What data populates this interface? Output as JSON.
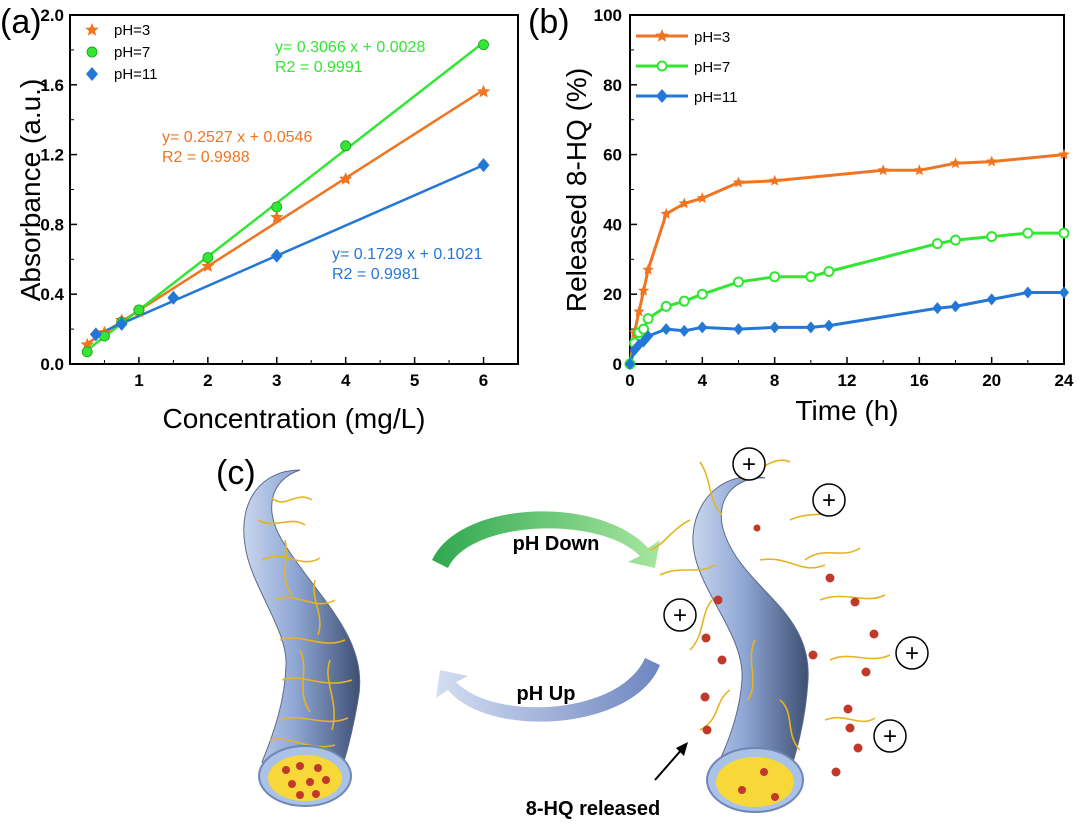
{
  "colors": {
    "orange": "#f07522",
    "green": "#33e633",
    "blue": "#2377d6"
  },
  "chart_data": [
    {
      "type": "scatter",
      "panel_label": "(a)",
      "xlabel": "Concentration (mg/L)",
      "ylabel": "Absorbance (a.u.)",
      "xlim": [
        0,
        6.5
      ],
      "ylim": [
        0,
        2.0
      ],
      "xticks": [
        "1",
        "2",
        "3",
        "4",
        "5",
        "6"
      ],
      "yticks": [
        "0.0",
        "0.4",
        "0.8",
        "1.2",
        "1.6",
        "2.0"
      ],
      "legend_position": "top-left",
      "series": [
        {
          "name": "pH=3",
          "marker": "star",
          "color": "#f07522",
          "x": [
            0.25,
            0.5,
            0.75,
            1,
            2,
            3,
            4,
            6
          ],
          "y": [
            0.11,
            0.18,
            0.25,
            0.3,
            0.56,
            0.84,
            1.06,
            1.56
          ],
          "fit": {
            "slope": 0.2527,
            "intercept": 0.0546
          },
          "equation": "y= 0.2527 x + 0.0546",
          "r2": "R2 = 0.9988"
        },
        {
          "name": "pH=7",
          "marker": "circle",
          "color": "#33e633",
          "x": [
            0.25,
            0.5,
            0.75,
            1,
            2,
            3,
            4,
            6
          ],
          "y": [
            0.07,
            0.16,
            0.24,
            0.31,
            0.61,
            0.9,
            1.25,
            1.83
          ],
          "fit": {
            "slope": 0.3066,
            "intercept": 0.0028
          },
          "equation": "y= 0.3066 x + 0.0028",
          "r2": "R2 = 0.9991"
        },
        {
          "name": "pH=11",
          "marker": "diamond",
          "color": "#2377d6",
          "x": [
            0.375,
            0.75,
            1.5,
            3,
            6
          ],
          "y": [
            0.17,
            0.23,
            0.38,
            0.62,
            1.14
          ],
          "fit": {
            "slope": 0.1729,
            "intercept": 0.1021
          },
          "equation": "y= 0.1729 x + 0.1021",
          "r2": "R2 = 0.9981"
        }
      ]
    },
    {
      "type": "line",
      "panel_label": "(b)",
      "xlabel": "Time (h)",
      "ylabel": "Released 8-HQ (%)",
      "xlim": [
        0,
        24
      ],
      "ylim": [
        0,
        100
      ],
      "xticks": [
        "0",
        "4",
        "8",
        "12",
        "16",
        "20",
        "24"
      ],
      "yticks": [
        "0",
        "20",
        "40",
        "60",
        "80",
        "100"
      ],
      "legend_position": "top-left",
      "series": [
        {
          "name": "pH=3",
          "marker": "star",
          "color": "#f07522",
          "x": [
            0,
            0.25,
            0.5,
            0.75,
            1,
            2,
            3,
            4,
            6,
            8,
            14,
            16,
            18,
            20,
            24
          ],
          "y": [
            0,
            9,
            15,
            21,
            27,
            43,
            46,
            47.5,
            52,
            52.5,
            55.5,
            55.5,
            57.5,
            58,
            60
          ]
        },
        {
          "name": "pH=7",
          "marker": "circle",
          "color": "#33e633",
          "x": [
            0,
            0.25,
            0.5,
            0.75,
            1,
            2,
            3,
            4,
            6,
            8,
            10,
            11,
            17,
            18,
            20,
            22,
            24
          ],
          "y": [
            0,
            6,
            9,
            10,
            13,
            16.5,
            18,
            20,
            23.5,
            25,
            25,
            26.5,
            34.5,
            35.5,
            36.5,
            37.5,
            37.5
          ]
        },
        {
          "name": "pH=11",
          "marker": "diamond",
          "color": "#2377d6",
          "x": [
            0,
            0.25,
            0.5,
            0.75,
            1,
            2,
            3,
            4,
            6,
            8,
            10,
            11,
            17,
            18,
            20,
            22,
            24
          ],
          "y": [
            0,
            4,
            5.5,
            6.5,
            8,
            10,
            9.5,
            10.5,
            10,
            10.5,
            10.5,
            11,
            16,
            16.5,
            18.5,
            20.5,
            20.5
          ]
        }
      ]
    }
  ],
  "diagram": {
    "panel_label": "(c)",
    "arrow_top_label": "pH Down",
    "arrow_bottom_label": "pH Up",
    "release_label": "8-HQ released",
    "charge_symbol": "+"
  }
}
